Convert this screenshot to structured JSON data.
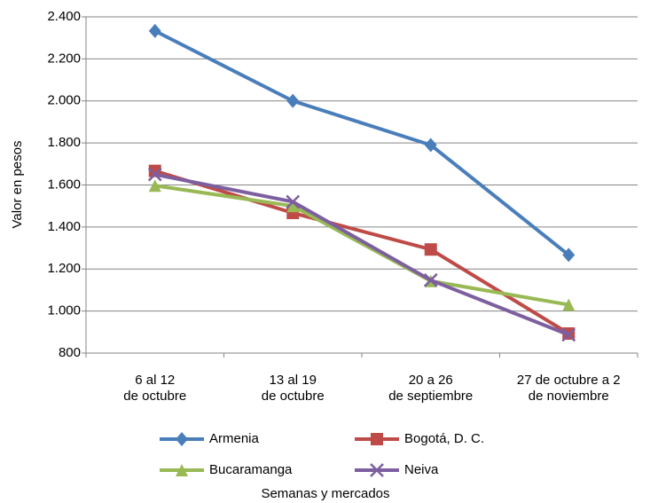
{
  "chart_data": {
    "type": "line",
    "x_label": "Semanas y mercados",
    "y_label": "Valor en pesos",
    "categories": [
      "6 al 12\nde octubre",
      "13 al 19\nde octubre",
      "20 a 26\nde septiembre",
      "27 de octubre a 2\nde noviembre"
    ],
    "series": [
      {
        "name": "Armenia",
        "color": "#4a7ebb",
        "marker": "diamond",
        "values": [
          2333,
          2000,
          1790,
          1267
        ]
      },
      {
        "name": "Bogotá, D. C.",
        "color": "#be4b48",
        "marker": "square",
        "values": [
          1667,
          1467,
          1293,
          893
        ]
      },
      {
        "name": "Bucaramanga",
        "color": "#98b954",
        "marker": "triangle",
        "values": [
          1597,
          1500,
          1143,
          1030
        ]
      },
      {
        "name": "Neiva",
        "color": "#7d5fa0",
        "marker": "x",
        "values": [
          1650,
          1520,
          1147,
          887
        ]
      }
    ],
    "ylim": [
      800,
      2400
    ],
    "yticks": [
      {
        "value": 800,
        "label": "800"
      },
      {
        "value": 1000,
        "label": "1.000"
      },
      {
        "value": 1200,
        "label": "1.200"
      },
      {
        "value": 1400,
        "label": "1.400"
      },
      {
        "value": 1600,
        "label": "1.600"
      },
      {
        "value": 1800,
        "label": "1.800"
      },
      {
        "value": 2000,
        "label": "2.000"
      },
      {
        "value": 2200,
        "label": "2.200"
      },
      {
        "value": 2400,
        "label": "2.400"
      }
    ],
    "grid": true,
    "legend": "bottom"
  }
}
